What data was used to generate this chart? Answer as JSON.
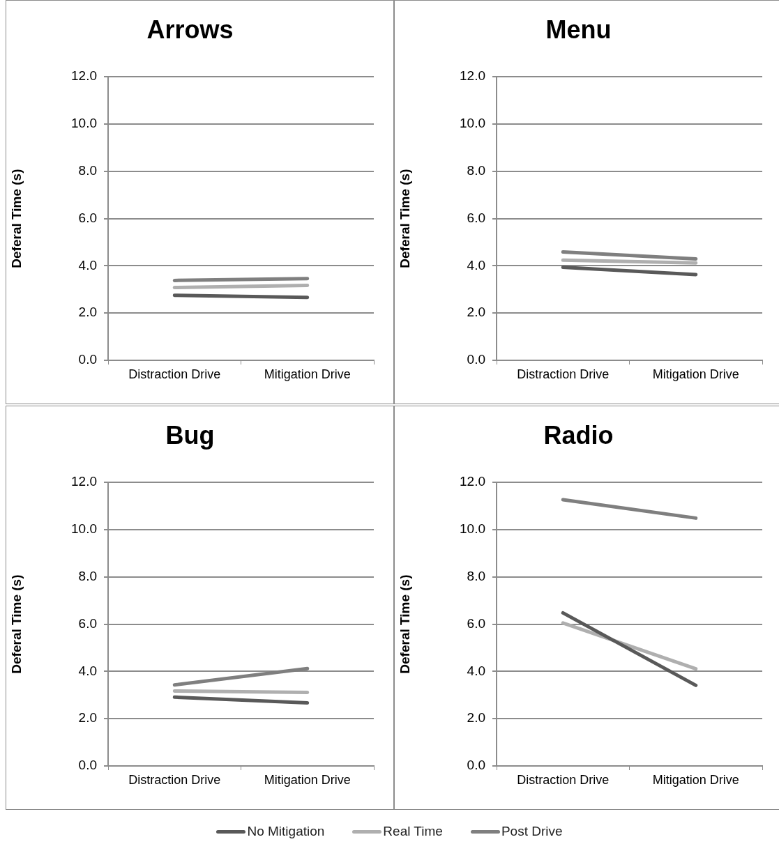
{
  "chart_data": [
    {
      "type": "line",
      "title": "Arrows",
      "ylabel": "Deferal Time (s)",
      "categories": [
        "Distraction Drive",
        "Mitigation Drive"
      ],
      "ylim": [
        0,
        12
      ],
      "yticks": [
        {
          "value": 0,
          "label": "0.0"
        },
        {
          "value": 2,
          "label": "2.0"
        },
        {
          "value": 4,
          "label": "4.0"
        },
        {
          "value": 6,
          "label": "6.0"
        },
        {
          "value": 8,
          "label": "8.0"
        },
        {
          "value": 10,
          "label": "10.0"
        },
        {
          "value": 12,
          "label": "12.0"
        }
      ],
      "grid": "y",
      "marker": "none",
      "line_style": "solid",
      "legend": "bottom",
      "series": [
        {
          "name": "No Mitigation",
          "color": "#595959",
          "values": [
            2.75,
            2.66
          ]
        },
        {
          "name": "Real Time",
          "color": "#afafaf",
          "values": [
            3.08,
            3.17
          ]
        },
        {
          "name": "Post Drive",
          "color": "#7f7f7f",
          "values": [
            3.38,
            3.46
          ]
        }
      ]
    },
    {
      "type": "line",
      "title": "Menu",
      "ylabel": "Deferal Time (s)",
      "categories": [
        "Distraction Drive",
        "Mitigation Drive"
      ],
      "ylim": [
        0,
        12
      ],
      "yticks": [
        {
          "value": 0,
          "label": "0.0"
        },
        {
          "value": 2,
          "label": "2.0"
        },
        {
          "value": 4,
          "label": "4.0"
        },
        {
          "value": 6,
          "label": "6.0"
        },
        {
          "value": 8,
          "label": "8.0"
        },
        {
          "value": 10,
          "label": "10.0"
        },
        {
          "value": 12,
          "label": "12.0"
        }
      ],
      "grid": "y",
      "marker": "none",
      "line_style": "solid",
      "series": [
        {
          "color": "#595959",
          "values": [
            3.94,
            3.63
          ]
        },
        {
          "color": "#afafaf",
          "values": [
            4.24,
            4.12
          ]
        },
        {
          "color": "#7f7f7f",
          "values": [
            4.59,
            4.29
          ]
        }
      ]
    },
    {
      "type": "line",
      "title": "Bug",
      "ylabel": "Deferal Time (s)",
      "categories": [
        "Distraction Drive",
        "Mitigation Drive"
      ],
      "ylim": [
        0,
        12
      ],
      "yticks": [
        {
          "value": 0,
          "label": "0.0"
        },
        {
          "value": 2,
          "label": "2.0"
        },
        {
          "value": 4,
          "label": "4.0"
        },
        {
          "value": 6,
          "label": "6.0"
        },
        {
          "value": 8,
          "label": "8.0"
        },
        {
          "value": 10,
          "label": "10.0"
        },
        {
          "value": 12,
          "label": "12.0"
        }
      ],
      "grid": "y",
      "marker": "none",
      "line_style": "solid",
      "series": [
        {
          "color": "#595959",
          "values": [
            2.91,
            2.67
          ]
        },
        {
          "color": "#afafaf",
          "values": [
            3.17,
            3.11
          ]
        },
        {
          "color": "#7f7f7f",
          "values": [
            3.43,
            4.12
          ]
        }
      ]
    },
    {
      "type": "line",
      "title": "Radio",
      "ylabel": "Deferal Time (s)",
      "categories": [
        "Distraction Drive",
        "Mitigation Drive"
      ],
      "ylim": [
        0,
        12
      ],
      "yticks": [
        {
          "value": 0,
          "label": "0.0"
        },
        {
          "value": 2,
          "label": "2.0"
        },
        {
          "value": 4,
          "label": "4.0"
        },
        {
          "value": 6,
          "label": "6.0"
        },
        {
          "value": 8,
          "label": "8.0"
        },
        {
          "value": 10,
          "label": "10.0"
        },
        {
          "value": 12,
          "label": "12.0"
        }
      ],
      "grid": "y",
      "marker": "none",
      "line_style": "solid",
      "series": [
        {
          "color": "#595959",
          "values": [
            6.48,
            3.41
          ]
        },
        {
          "color": "#afafaf",
          "values": [
            6.05,
            4.11
          ]
        },
        {
          "color": "#7f7f7f",
          "values": [
            11.27,
            10.49
          ]
        }
      ]
    }
  ]
}
